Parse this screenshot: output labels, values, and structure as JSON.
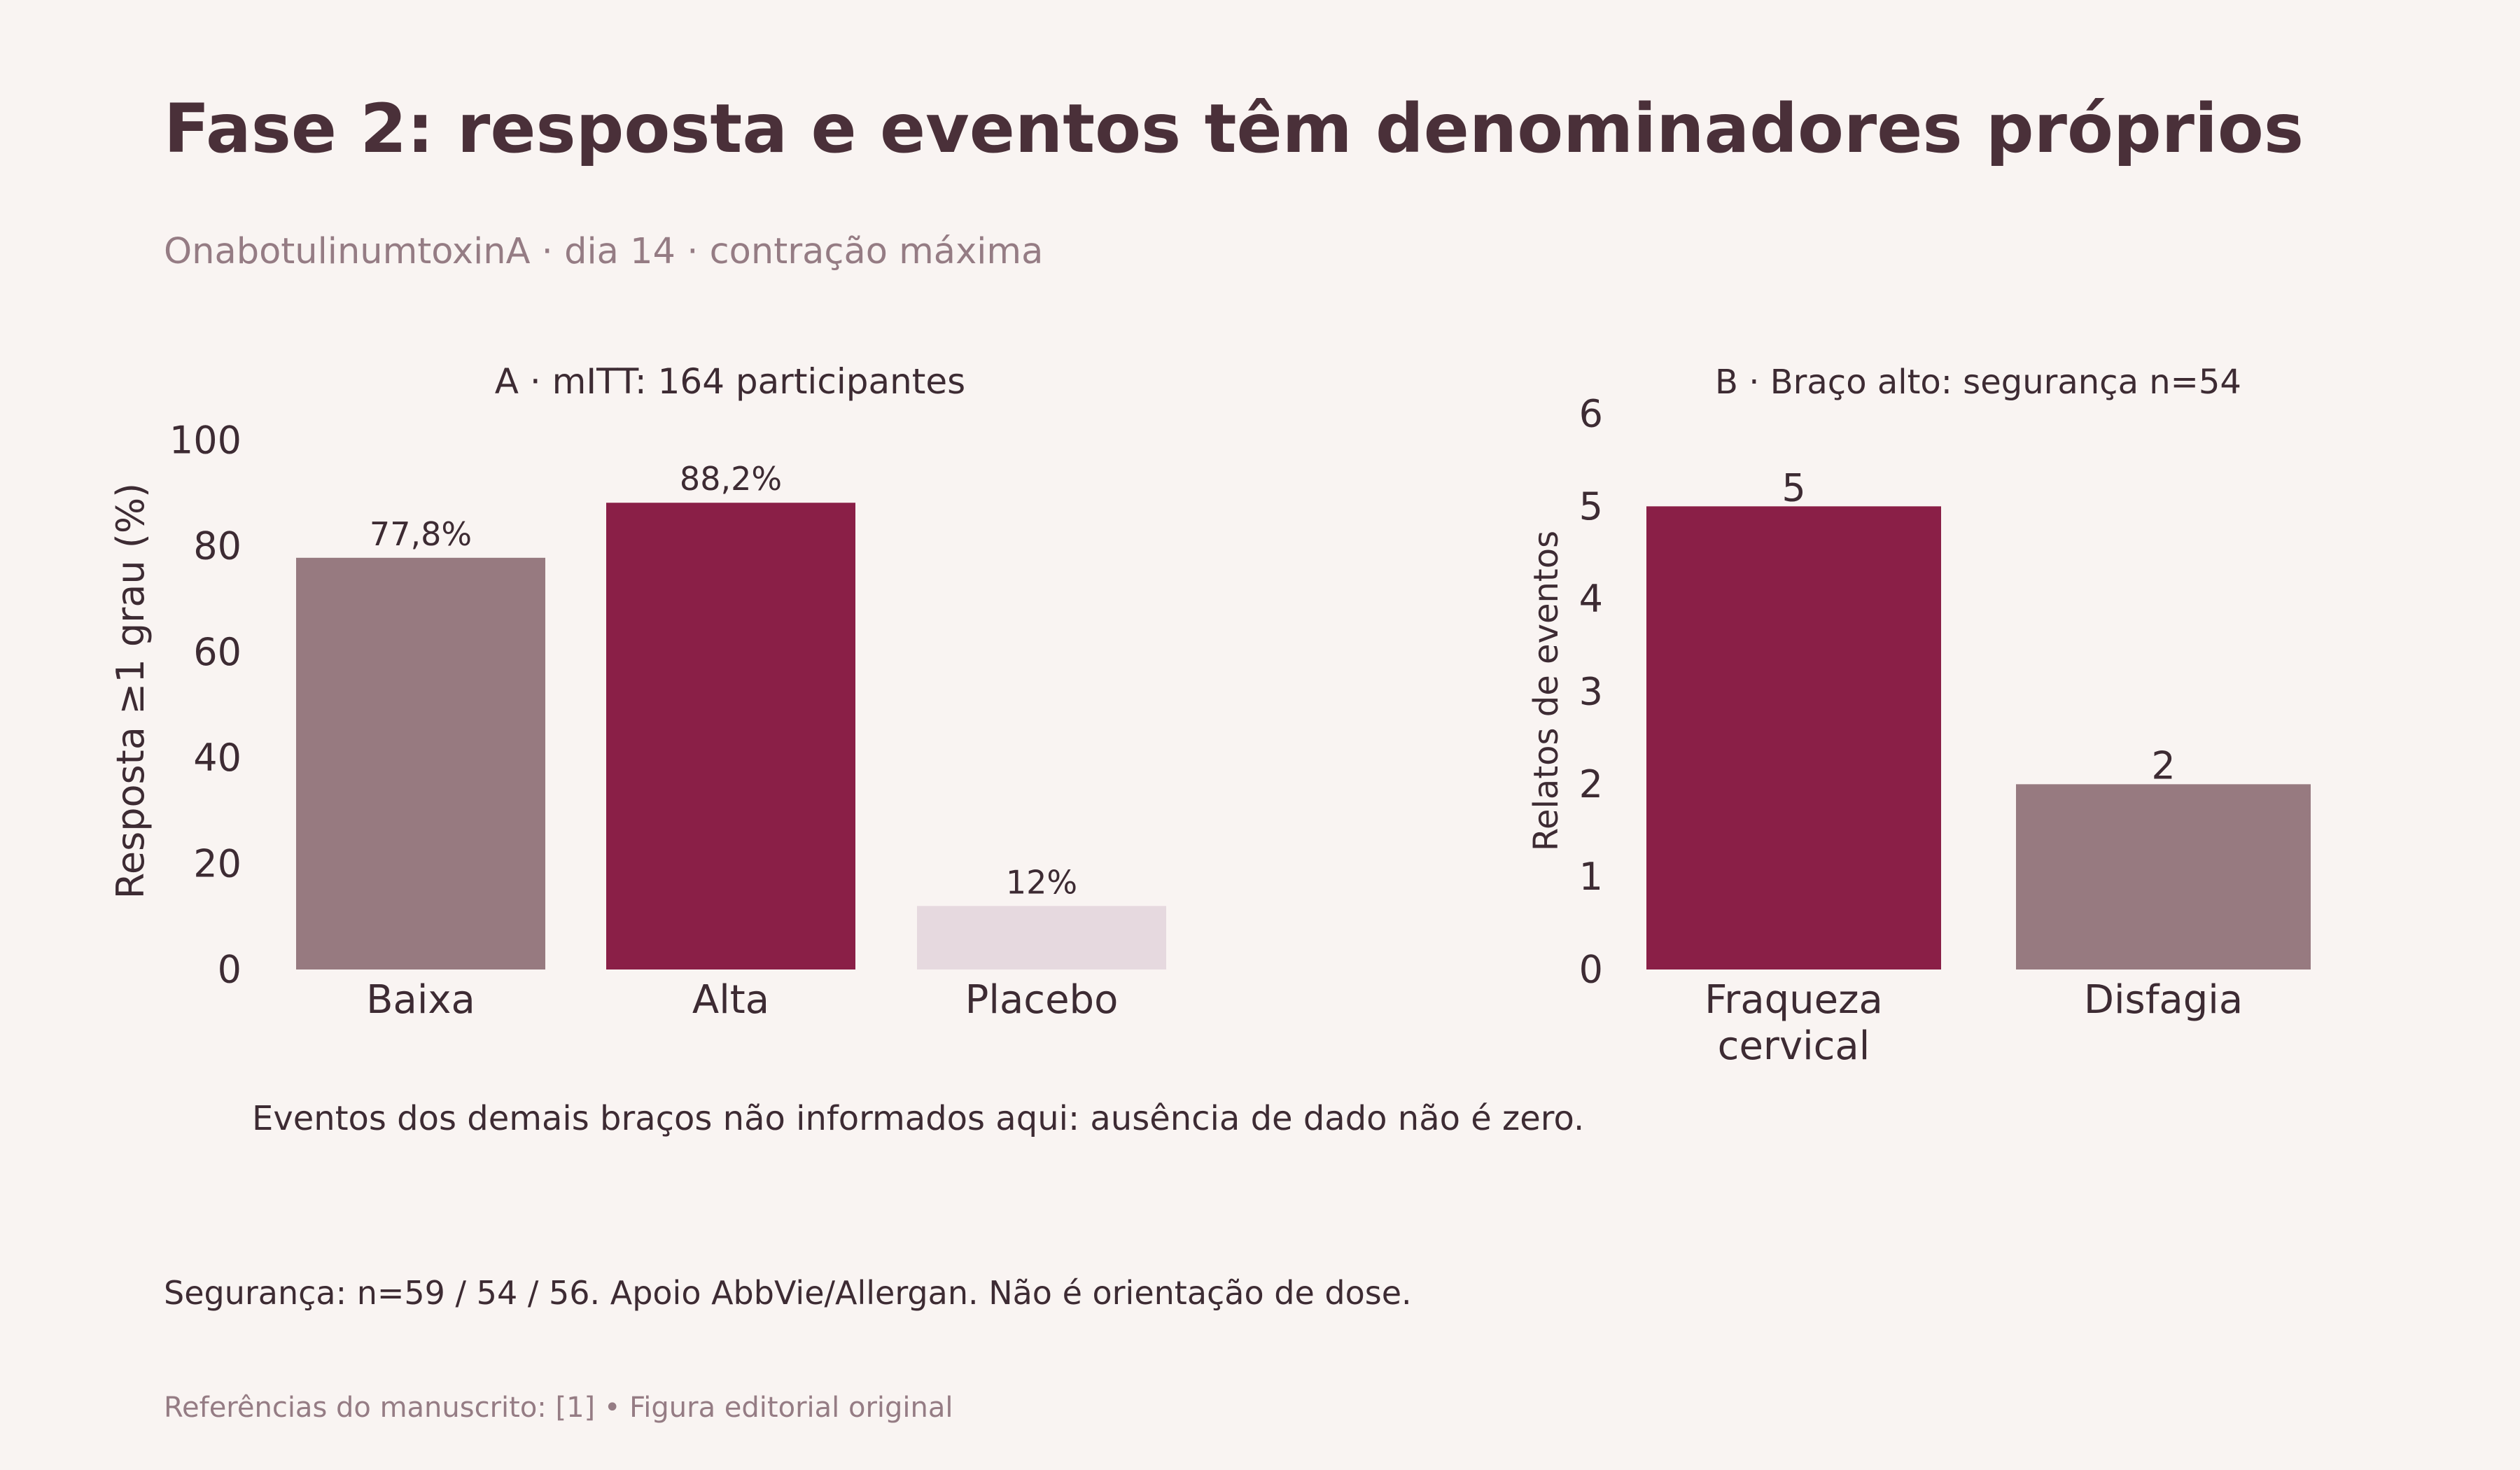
{
  "title": "Fase 2: resposta e eventos têm denominadores próprios",
  "subtitle": "OnabotulinumtoxinA · dia 14 · contração máxima",
  "note": "Eventos dos demais braços não informados aqui: ausência de dado não é zero.",
  "footer": "Segurança: n=59 / 54 / 56. Apoio AbbVie/Allergan. Não é orientação de dose.",
  "references": "Referências do manuscrito: [1]  •  Figura editorial original",
  "colors": {
    "background": "#f9f4f2",
    "text": "#3d2b33",
    "muted": "#957c84",
    "accent": "#8a1f47",
    "mauve": "#977a80",
    "pale": "#e6d9df"
  },
  "chart_data": [
    {
      "type": "bar",
      "title": "A · mITT: 164 participantes",
      "xlabel": "",
      "ylabel": "Resposta ≥1 grau (%)",
      "ylim": [
        0,
        100
      ],
      "yticks": [
        0,
        20,
        40,
        60,
        80,
        100
      ],
      "categories": [
        "Baixa",
        "Alta",
        "Placebo"
      ],
      "values": [
        77.8,
        88.2,
        12
      ],
      "value_labels": [
        "77,8%",
        "88,2%",
        "12%"
      ],
      "bar_colors": [
        "#977a80",
        "#8a1f47",
        "#e6d9df"
      ],
      "grid": false,
      "legend": "none"
    },
    {
      "type": "bar",
      "title": "B · Braço alto: segurança n=54",
      "xlabel": "",
      "ylabel": "Relatos de eventos",
      "ylim": [
        0,
        6
      ],
      "yticks": [
        0,
        1,
        2,
        3,
        4,
        5,
        6
      ],
      "categories": [
        [
          "Fraqueza",
          "cervical"
        ],
        [
          "Disfagia"
        ]
      ],
      "values": [
        5,
        2
      ],
      "value_labels": [
        "5",
        "2"
      ],
      "bar_colors": [
        "#8a1f47",
        "#977a80"
      ],
      "grid": false,
      "legend": "none"
    }
  ]
}
